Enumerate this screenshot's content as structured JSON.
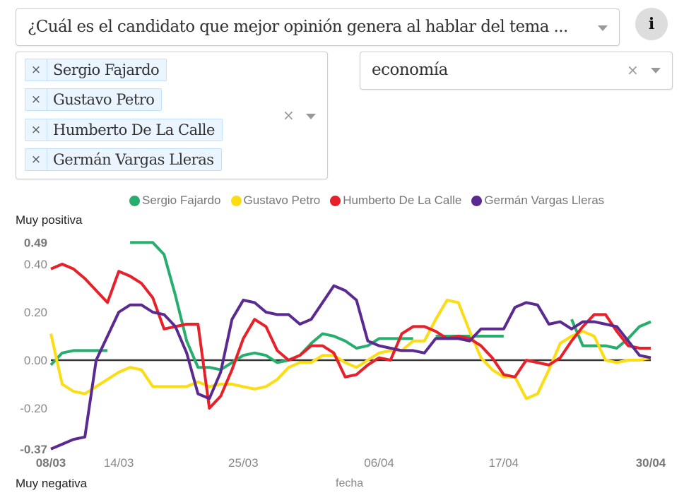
{
  "question_select": {
    "value": "¿Cuál es el candidato que mejor opinión genera al hablar del tema ..."
  },
  "info_button": {
    "label": "i"
  },
  "candidates_select": {
    "selected": [
      "Sergio Fajardo",
      "Gustavo Petro",
      "Humberto De La Calle",
      "Germán Vargas Lleras"
    ],
    "remove_glyph": "×",
    "clear_glyph": "×"
  },
  "topic_select": {
    "value": "economía",
    "clear_glyph": "×"
  },
  "chart_data": {
    "type": "line",
    "title": "",
    "xlabel": "fecha",
    "ylabel_top": "Muy positiva",
    "ylabel_bottom": "Muy negativa",
    "ylim": [
      -0.37,
      0.49
    ],
    "y_ticks": [
      {
        "value": 0.49,
        "label": "0.49",
        "bold": true
      },
      {
        "value": 0.4,
        "label": "0.40",
        "bold": false
      },
      {
        "value": 0.2,
        "label": "0.20",
        "bold": false
      },
      {
        "value": 0.0,
        "label": "0.00",
        "bold": false
      },
      {
        "value": -0.2,
        "label": "-0.20",
        "bold": false
      },
      {
        "value": -0.37,
        "label": "-0.37",
        "bold": true
      }
    ],
    "x_ticks": [
      {
        "index": 0,
        "label": "08/03",
        "bold": true
      },
      {
        "index": 6,
        "label": "14/03",
        "bold": false
      },
      {
        "index": 17,
        "label": "25/03",
        "bold": false
      },
      {
        "index": 29,
        "label": "06/04",
        "bold": false
      },
      {
        "index": 40,
        "label": "17/04",
        "bold": false
      },
      {
        "index": 53,
        "label": "30/04",
        "bold": true
      }
    ],
    "zero_line": true,
    "legend_position": "top",
    "x": [
      "08/03",
      "09/03",
      "10/03",
      "11/03",
      "12/03",
      "13/03",
      "14/03",
      "15/03",
      "16/03",
      "17/03",
      "18/03",
      "19/03",
      "20/03",
      "21/03",
      "22/03",
      "23/03",
      "24/03",
      "25/03",
      "26/03",
      "27/03",
      "28/03",
      "29/03",
      "30/03",
      "31/03",
      "01/04",
      "02/04",
      "03/04",
      "04/04",
      "05/04",
      "06/04",
      "07/04",
      "08/04",
      "09/04",
      "10/04",
      "11/04",
      "12/04",
      "13/04",
      "14/04",
      "15/04",
      "16/04",
      "17/04",
      "18/04",
      "19/04",
      "20/04",
      "21/04",
      "22/04",
      "23/04",
      "24/04",
      "25/04",
      "26/04",
      "27/04",
      "28/04",
      "29/04",
      "30/04"
    ],
    "series": [
      {
        "name": "Sergio Fajardo",
        "color": "#27ae6f",
        "values": [
          -0.02,
          0.03,
          0.04,
          0.04,
          0.04,
          0.04,
          null,
          0.49,
          0.49,
          0.49,
          0.44,
          0.27,
          0.08,
          -0.03,
          -0.03,
          -0.04,
          -0.01,
          0.02,
          0.03,
          0.02,
          -0.01,
          0.0,
          0.02,
          0.07,
          0.11,
          0.1,
          0.08,
          0.05,
          0.06,
          0.09,
          0.09,
          0.09,
          0.09,
          null,
          0.1,
          0.1,
          0.1,
          0.1,
          0.1,
          0.1,
          0.1,
          null,
          null,
          null,
          null,
          null,
          0.17,
          0.06,
          0.06,
          0.06,
          0.05,
          0.09,
          0.14,
          0.16
        ]
      },
      {
        "name": "Gustavo Petro",
        "color": "#fcdc12",
        "values": [
          0.11,
          -0.1,
          -0.13,
          -0.14,
          -0.11,
          -0.08,
          -0.05,
          -0.03,
          -0.04,
          -0.11,
          -0.11,
          -0.11,
          -0.11,
          -0.09,
          -0.11,
          -0.1,
          -0.1,
          -0.11,
          -0.12,
          -0.11,
          -0.08,
          -0.03,
          -0.01,
          -0.01,
          0.02,
          0.02,
          -0.01,
          -0.03,
          0.0,
          0.03,
          0.04,
          0.04,
          0.08,
          0.08,
          0.17,
          0.25,
          0.24,
          0.12,
          0.01,
          -0.04,
          -0.07,
          -0.07,
          -0.16,
          -0.14,
          -0.04,
          0.07,
          0.1,
          0.12,
          0.1,
          0.0,
          -0.01,
          0.0,
          0.0,
          0.01
        ]
      },
      {
        "name": "Humberto De La Calle",
        "color": "#e8202a",
        "values": [
          0.38,
          0.4,
          0.38,
          0.34,
          0.29,
          0.24,
          0.37,
          0.35,
          0.32,
          0.26,
          0.13,
          0.14,
          0.15,
          0.15,
          -0.2,
          -0.15,
          -0.04,
          0.09,
          0.17,
          0.14,
          0.04,
          0.0,
          0.02,
          0.06,
          0.06,
          0.03,
          -0.07,
          -0.06,
          -0.02,
          0.01,
          0.0,
          0.11,
          0.14,
          0.14,
          0.12,
          0.09,
          0.1,
          0.09,
          0.06,
          0.01,
          -0.06,
          -0.07,
          0.0,
          -0.01,
          -0.02,
          0.01,
          0.08,
          0.14,
          0.19,
          0.19,
          0.12,
          0.06,
          0.05,
          0.05
        ]
      },
      {
        "name": "Germán Vargas Lleras",
        "color": "#5b2a91",
        "values": [
          -0.37,
          -0.35,
          -0.33,
          -0.32,
          0.0,
          0.1,
          0.2,
          0.23,
          0.23,
          0.2,
          0.19,
          0.14,
          0.03,
          -0.14,
          -0.16,
          -0.05,
          0.17,
          0.25,
          0.24,
          0.2,
          0.19,
          0.19,
          0.15,
          0.17,
          0.24,
          0.31,
          0.29,
          0.25,
          0.08,
          0.06,
          0.05,
          0.04,
          0.04,
          0.03,
          0.09,
          0.09,
          0.09,
          0.08,
          0.13,
          0.13,
          0.13,
          0.22,
          0.24,
          0.23,
          0.15,
          0.16,
          0.13,
          0.16,
          0.16,
          0.15,
          0.14,
          0.08,
          0.02,
          0.01
        ]
      }
    ]
  }
}
